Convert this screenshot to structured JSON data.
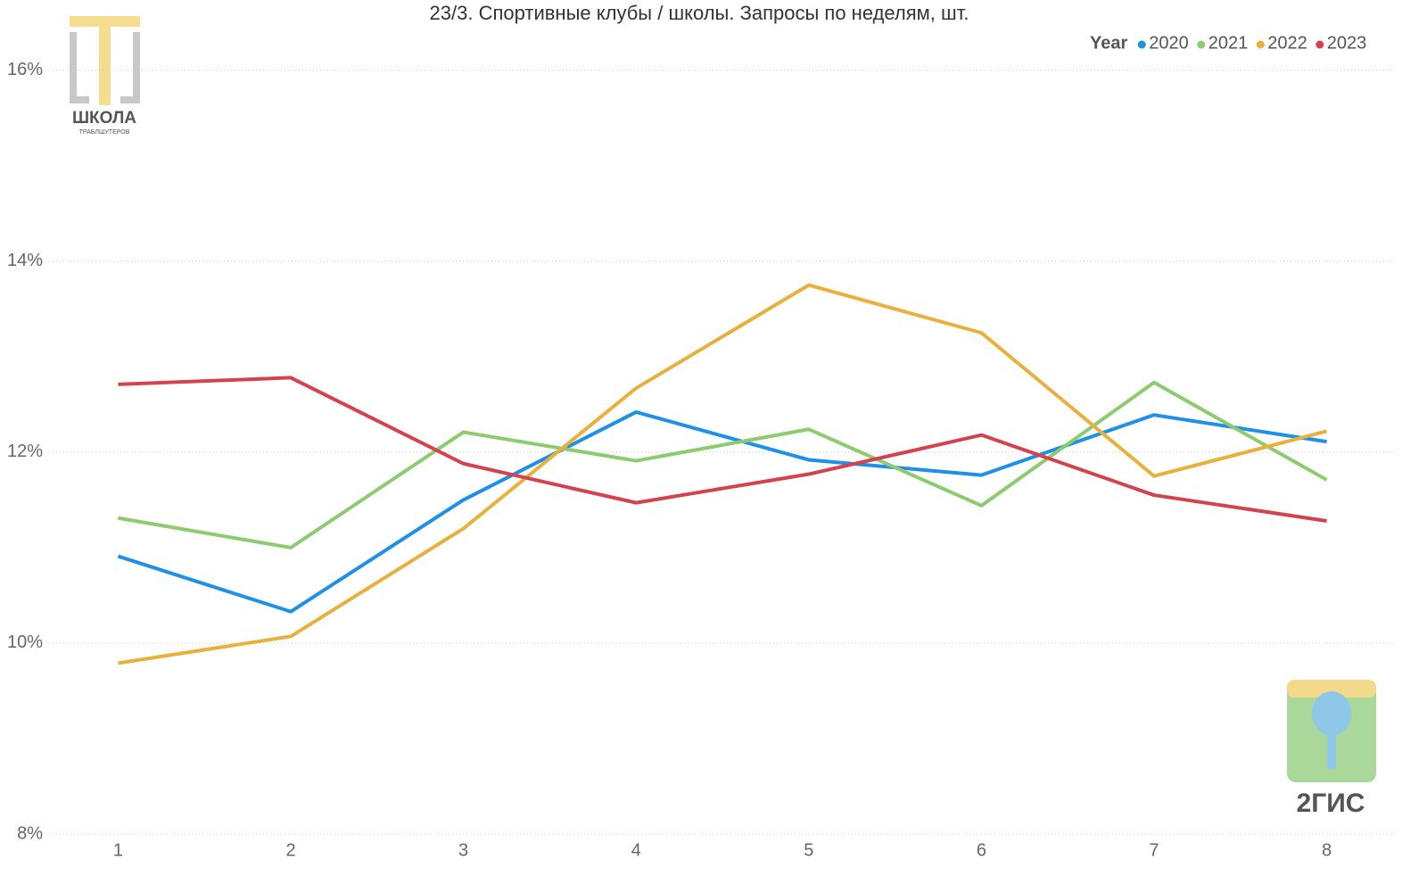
{
  "chart_data": {
    "type": "line",
    "title": "23/3. Спортивные клубы / школы. Запросы по неделям, шт.",
    "legend_title": "Year",
    "legend_position": "top-right",
    "grid": true,
    "x": [
      1,
      2,
      3,
      4,
      5,
      6,
      7,
      8
    ],
    "xlim": [
      0.6,
      8.4
    ],
    "xticks": [
      1,
      2,
      3,
      4,
      5,
      6,
      7,
      8
    ],
    "ylim": [
      8,
      16.4
    ],
    "yticks": [
      {
        "value": 8,
        "label": "8%"
      },
      {
        "value": 10,
        "label": "10%"
      },
      {
        "value": 12,
        "label": "12%"
      },
      {
        "value": 14,
        "label": "14%"
      },
      {
        "value": 16,
        "label": "16%"
      }
    ],
    "series": [
      {
        "name": "2020",
        "color": "#1f8fe8",
        "values": [
          10.91,
          10.33,
          11.5,
          12.42,
          11.92,
          11.76,
          12.39,
          12.11
        ]
      },
      {
        "name": "2021",
        "color": "#8ccb6e",
        "values": [
          11.31,
          11.0,
          12.21,
          11.91,
          12.24,
          11.44,
          12.73,
          11.71
        ]
      },
      {
        "name": "2022",
        "color": "#e8b03c",
        "values": [
          9.79,
          10.07,
          11.2,
          12.67,
          13.75,
          13.25,
          11.75,
          12.22
        ]
      },
      {
        "name": "2023",
        "color": "#d2434f",
        "values": [
          12.71,
          12.78,
          11.88,
          11.47,
          11.77,
          12.18,
          11.55,
          11.28
        ]
      }
    ]
  },
  "logos": {
    "school": "ШКОЛА",
    "school_sub": "ТРАБЛШУТЕРОВ",
    "gis": "2ГИС"
  }
}
